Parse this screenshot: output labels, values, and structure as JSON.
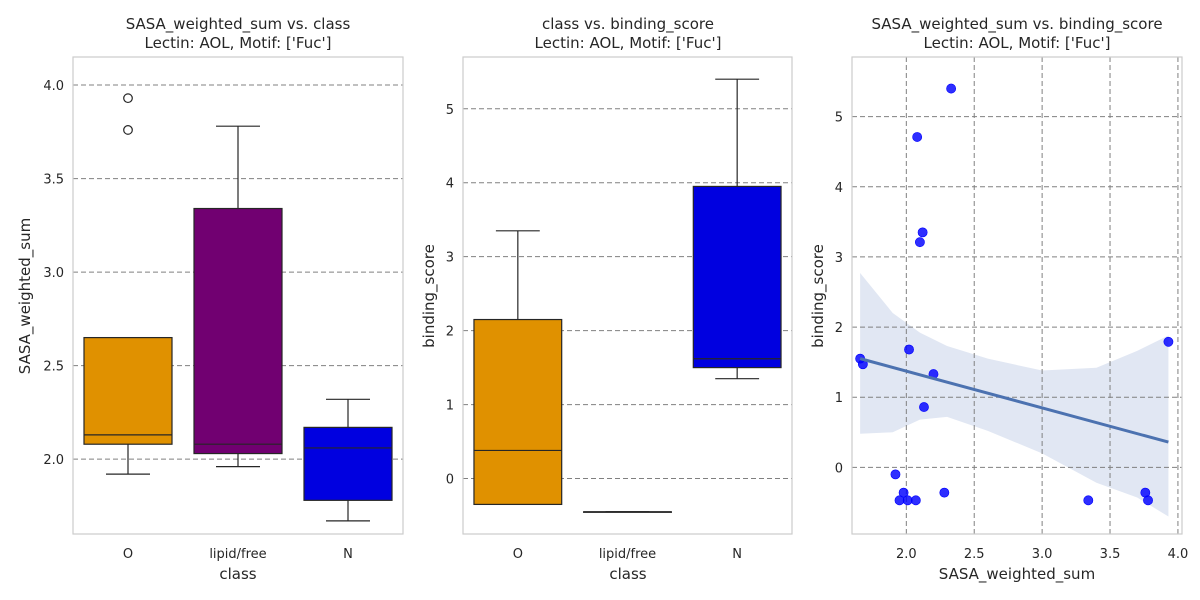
{
  "colors": {
    "orange": "#FFA500",
    "purple": "#800080",
    "blue": "#0000FF",
    "reg_line": "#4C72B0",
    "ci_fill": "#E1E7F3",
    "grid": "#808080",
    "frame": "#CCCCCC"
  },
  "chart_data": [
    {
      "type": "box",
      "title": "SASA_weighted_sum vs. class",
      "subtitle": "Lectin: AOL, Motif: ['Fuc']",
      "xlabel": "class",
      "ylabel": "SASA_weighted_sum",
      "ylim": [
        1.6,
        4.15
      ],
      "yticks": [
        2.0,
        2.5,
        3.0,
        3.5,
        4.0
      ],
      "ytick_labels": [
        "2.0",
        "2.5",
        "3.0",
        "3.5",
        "4.0"
      ],
      "grid": "horizontal-dashed",
      "categories": [
        "O",
        "lipid/free",
        "N"
      ],
      "boxes": [
        {
          "category": "O",
          "color": "orange",
          "whisker_low": 1.92,
          "q1": 2.08,
          "median": 2.13,
          "q3": 2.65,
          "whisker_high": 2.65,
          "outliers": [
            3.76,
            3.93
          ]
        },
        {
          "category": "lipid/free",
          "color": "purple",
          "whisker_low": 1.96,
          "q1": 2.03,
          "median": 2.08,
          "q3": 3.34,
          "whisker_high": 3.78,
          "outliers": []
        },
        {
          "category": "N",
          "color": "blue",
          "whisker_low": 1.67,
          "q1": 1.78,
          "median": 2.06,
          "q3": 2.17,
          "whisker_high": 2.32,
          "outliers": []
        }
      ]
    },
    {
      "type": "box",
      "title": "class vs. binding_score",
      "subtitle": "Lectin: AOL, Motif: ['Fuc']",
      "xlabel": "class",
      "ylabel": "binding_score",
      "ylim": [
        -0.75,
        5.7
      ],
      "yticks": [
        0,
        1,
        2,
        3,
        4,
        5
      ],
      "ytick_labels": [
        "0",
        "1",
        "2",
        "3",
        "4",
        "5"
      ],
      "grid": "horizontal-dashed",
      "categories": [
        "O",
        "lipid/free",
        "N"
      ],
      "boxes": [
        {
          "category": "O",
          "color": "orange",
          "whisker_low": -0.35,
          "q1": -0.35,
          "median": 0.38,
          "q3": 2.15,
          "whisker_high": 3.35,
          "outliers": []
        },
        {
          "category": "lipid/free",
          "color": "purple",
          "whisker_low": -0.45,
          "q1": -0.45,
          "median": -0.45,
          "q3": -0.45,
          "whisker_high": -0.45,
          "outliers": []
        },
        {
          "category": "N",
          "color": "blue",
          "whisker_low": 1.35,
          "q1": 1.5,
          "median": 1.62,
          "q3": 3.95,
          "whisker_high": 5.4,
          "outliers": []
        }
      ]
    },
    {
      "type": "scatter",
      "title": "SASA_weighted_sum vs. binding_score",
      "subtitle": "Lectin: AOL, Motif: ['Fuc']",
      "xlabel": "SASA_weighted_sum",
      "ylabel": "binding_score",
      "xlim": [
        1.6,
        4.03
      ],
      "ylim": [
        -0.95,
        5.85
      ],
      "xticks": [
        2.0,
        2.5,
        3.0,
        3.5,
        4.0
      ],
      "xtick_labels": [
        "2.0",
        "2.5",
        "3.0",
        "3.5",
        "4.0"
      ],
      "yticks": [
        0,
        1,
        2,
        3,
        4,
        5
      ],
      "ytick_labels": [
        "0",
        "1",
        "2",
        "3",
        "4",
        "5"
      ],
      "grid": "both-dashed",
      "point_color": "blue",
      "points": [
        [
          1.66,
          1.55
        ],
        [
          1.68,
          1.47
        ],
        [
          1.92,
          -0.1
        ],
        [
          1.95,
          -0.47
        ],
        [
          1.98,
          -0.36
        ],
        [
          2.01,
          -0.47
        ],
        [
          2.02,
          1.68
        ],
        [
          2.07,
          -0.47
        ],
        [
          2.08,
          4.71
        ],
        [
          2.1,
          3.21
        ],
        [
          2.12,
          3.35
        ],
        [
          2.13,
          0.86
        ],
        [
          2.2,
          1.33
        ],
        [
          2.28,
          -0.36
        ],
        [
          2.33,
          5.4
        ],
        [
          3.34,
          -0.47
        ],
        [
          3.76,
          -0.36
        ],
        [
          3.78,
          -0.47
        ],
        [
          3.93,
          1.79
        ]
      ],
      "regression": {
        "x_range": [
          1.66,
          3.93
        ],
        "y_start": 1.55,
        "y_end": 0.36
      },
      "ci_band": {
        "x": [
          1.66,
          1.9,
          2.1,
          2.3,
          2.6,
          3.0,
          3.4,
          3.7,
          3.93
        ],
        "upper": [
          2.77,
          2.2,
          1.92,
          1.73,
          1.55,
          1.38,
          1.42,
          1.66,
          1.88
        ],
        "lower": [
          0.48,
          0.5,
          0.68,
          0.72,
          0.52,
          0.2,
          -0.22,
          -0.43,
          -0.7
        ]
      }
    }
  ]
}
